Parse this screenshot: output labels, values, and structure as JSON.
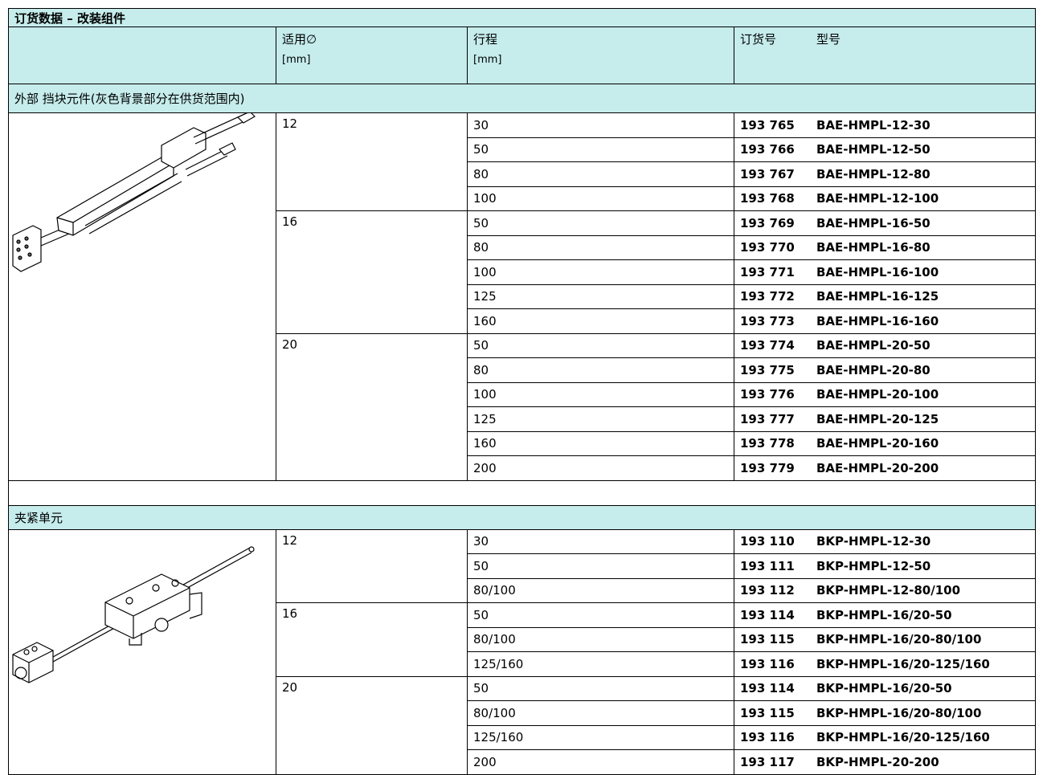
{
  "header": {
    "title": "订货数据 – 改装组件",
    "columns": [
      {
        "label": "适用∅",
        "unit": "[mm]"
      },
      {
        "label": "行程",
        "unit": "[mm]"
      },
      {
        "label": "订货号"
      },
      {
        "label": "型号"
      }
    ]
  },
  "sections": [
    {
      "title": "外部 挡块元件(灰色背景部分在供货范围内)",
      "groups": [
        {
          "diameter": "12",
          "rows": [
            {
              "stroke": "30",
              "part_no": "193 765",
              "type": "BAE-HMPL-12-30"
            },
            {
              "stroke": "50",
              "part_no": "193 766",
              "type": "BAE-HMPL-12-50"
            },
            {
              "stroke": "80",
              "part_no": "193 767",
              "type": "BAE-HMPL-12-80"
            },
            {
              "stroke": "100",
              "part_no": "193 768",
              "type": "BAE-HMPL-12-100"
            }
          ]
        },
        {
          "diameter": "16",
          "rows": [
            {
              "stroke": "50",
              "part_no": "193 769",
              "type": "BAE-HMPL-16-50"
            },
            {
              "stroke": "80",
              "part_no": "193 770",
              "type": "BAE-HMPL-16-80"
            },
            {
              "stroke": "100",
              "part_no": "193 771",
              "type": "BAE-HMPL-16-100"
            },
            {
              "stroke": "125",
              "part_no": "193 772",
              "type": "BAE-HMPL-16-125"
            },
            {
              "stroke": "160",
              "part_no": "193 773",
              "type": "BAE-HMPL-16-160"
            }
          ]
        },
        {
          "diameter": "20",
          "rows": [
            {
              "stroke": "50",
              "part_no": "193 774",
              "type": "BAE-HMPL-20-50"
            },
            {
              "stroke": "80",
              "part_no": "193 775",
              "type": "BAE-HMPL-20-80"
            },
            {
              "stroke": "100",
              "part_no": "193 776",
              "type": "BAE-HMPL-20-100"
            },
            {
              "stroke": "125",
              "part_no": "193 777",
              "type": "BAE-HMPL-20-125"
            },
            {
              "stroke": "160",
              "part_no": "193 778",
              "type": "BAE-HMPL-20-160"
            },
            {
              "stroke": "200",
              "part_no": "193 779",
              "type": "BAE-HMPL-20-200"
            }
          ]
        }
      ]
    },
    {
      "title": "夹紧单元",
      "groups": [
        {
          "diameter": "12",
          "rows": [
            {
              "stroke": "30",
              "part_no": "193 110",
              "type": "BKP-HMPL-12-30"
            },
            {
              "stroke": "50",
              "part_no": "193 111",
              "type": "BKP-HMPL-12-50"
            },
            {
              "stroke": "80/100",
              "part_no": "193 112",
              "type": "BKP-HMPL-12-80/100"
            }
          ]
        },
        {
          "diameter": "16",
          "rows": [
            {
              "stroke": "50",
              "part_no": "193 114",
              "type": "BKP-HMPL-16/20-50"
            },
            {
              "stroke": "80/100",
              "part_no": "193 115",
              "type": "BKP-HMPL-16/20-80/100"
            },
            {
              "stroke": "125/160",
              "part_no": "193 116",
              "type": "BKP-HMPL-16/20-125/160"
            }
          ]
        },
        {
          "diameter": "20",
          "rows": [
            {
              "stroke": "50",
              "part_no": "193 114",
              "type": "BKP-HMPL-16/20-50"
            },
            {
              "stroke": "80/100",
              "part_no": "193 115",
              "type": "BKP-HMPL-16/20-80/100"
            },
            {
              "stroke": "125/160",
              "part_no": "193 116",
              "type": "BKP-HMPL-16/20-125/160"
            },
            {
              "stroke": "200",
              "part_no": "193 117",
              "type": "BKP-HMPL-20-200"
            }
          ]
        }
      ]
    }
  ]
}
